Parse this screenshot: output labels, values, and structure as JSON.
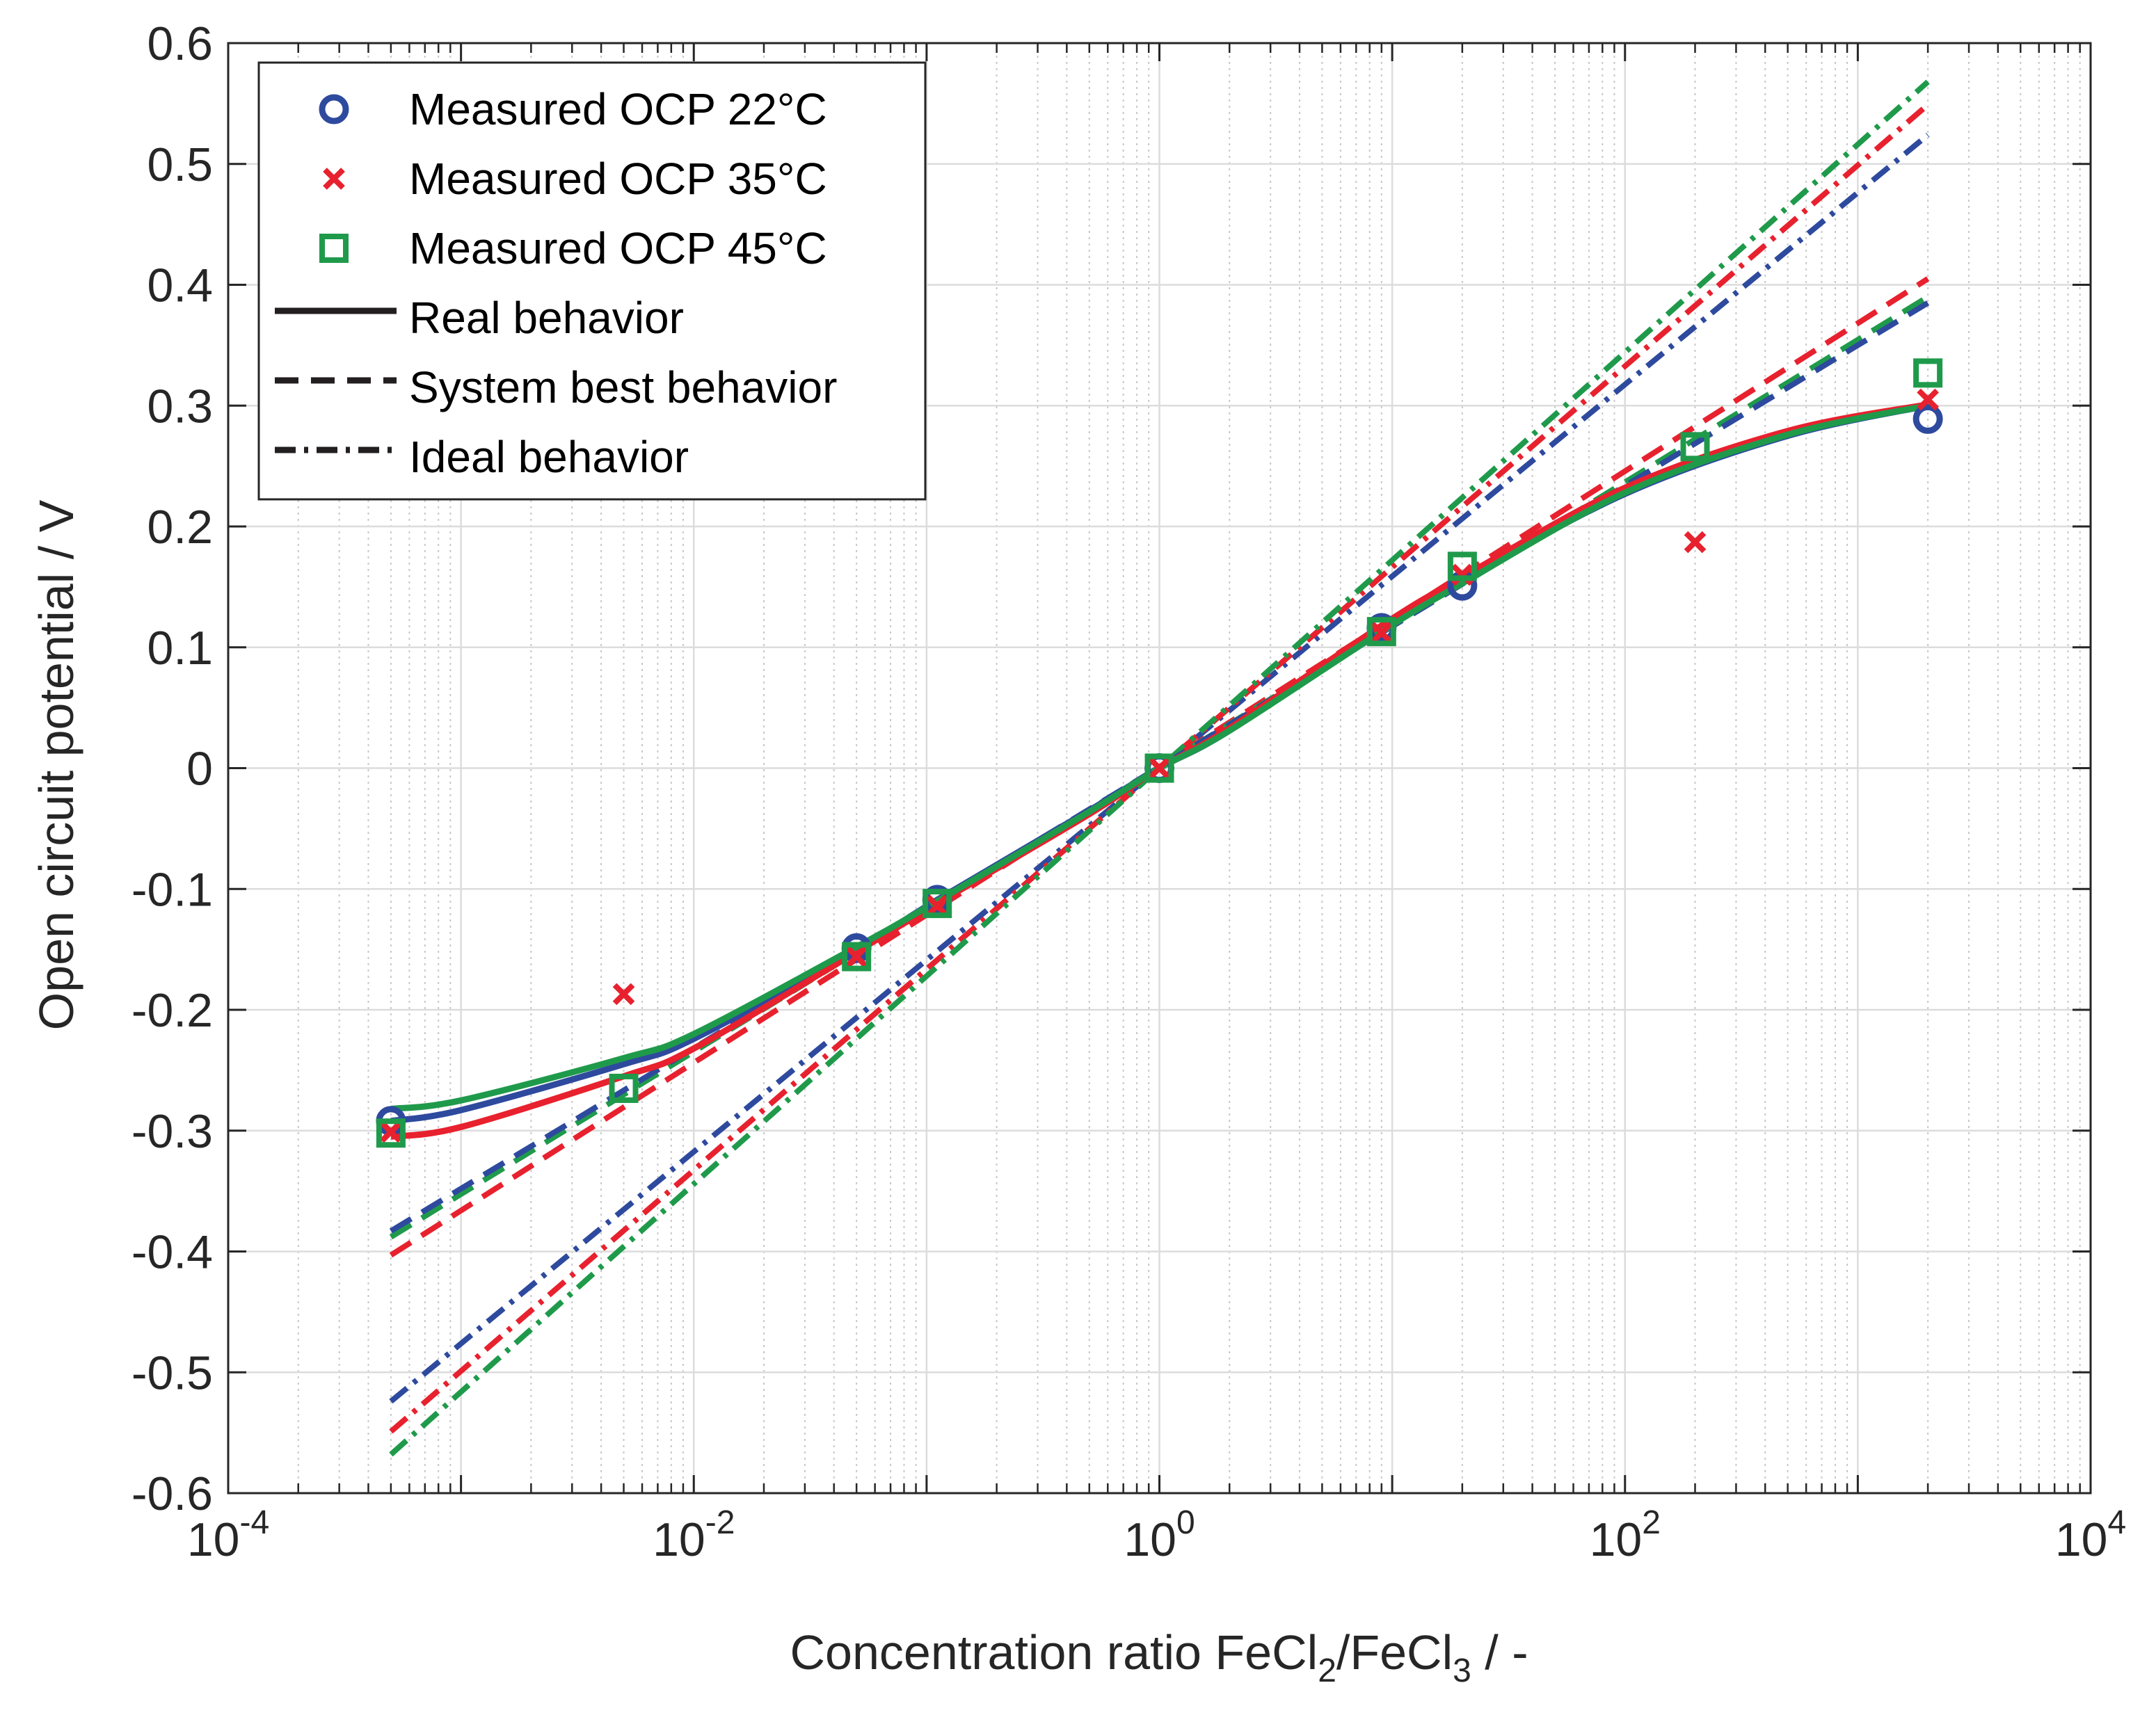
{
  "chart_data": {
    "type": "scatter",
    "title": "",
    "xlabel": {
      "prefix": "Concentration ratio FeCl",
      "sub1": "2",
      "mid": "/FeCl",
      "sub2": "3",
      "suffix": " / -"
    },
    "ylabel": "Open circuit potential / V",
    "xscale": "log",
    "xlim": [
      0.0001,
      10000
    ],
    "ylim": [
      -0.6,
      0.6
    ],
    "xticks": [
      {
        "base": "10",
        "exp": "-4",
        "value": 0.0001
      },
      {
        "base": "10",
        "exp": "-2",
        "value": 0.01
      },
      {
        "base": "10",
        "exp": "0",
        "value": 1
      },
      {
        "base": "10",
        "exp": "2",
        "value": 100
      },
      {
        "base": "10",
        "exp": "4",
        "value": 10000
      }
    ],
    "yticks": [
      "-0.6",
      "-0.5",
      "-0.4",
      "-0.3",
      "-0.2",
      "-0.1",
      "0",
      "0.1",
      "0.2",
      "0.3",
      "0.4",
      "0.5",
      "0.6"
    ],
    "grid": true,
    "legend_position": "top-left",
    "legend": [
      {
        "label": "Measured OCP 22°C",
        "marker": "circle",
        "color": "#2e4a9e"
      },
      {
        "label": "Measured OCP 35°C",
        "marker": "x",
        "color": "#e8212e"
      },
      {
        "label": "Measured OCP 45°C",
        "marker": "square",
        "color": "#1f9a4b"
      },
      {
        "label": "Real behavior",
        "linestyle": "solid",
        "color": "#231f20"
      },
      {
        "label": "System best behavior",
        "linestyle": "dashed",
        "color": "#231f20"
      },
      {
        "label": "Ideal behavior",
        "linestyle": "dashdot",
        "color": "#231f20"
      }
    ],
    "measured": [
      {
        "temperature": "22°C",
        "color": "#2e4a9e",
        "marker": "circle",
        "points": [
          [
            0.0005,
            -0.292
          ],
          [
            0.05,
            -0.149
          ],
          [
            0.1111,
            -0.109
          ],
          [
            1,
            0.0
          ],
          [
            9,
            0.116
          ],
          [
            20,
            0.151
          ],
          [
            2000,
            0.289
          ]
        ]
      },
      {
        "temperature": "35°C",
        "color": "#e8212e",
        "marker": "x",
        "points": [
          [
            0.0005,
            -0.301
          ],
          [
            0.005,
            -0.187
          ],
          [
            0.05,
            -0.156
          ],
          [
            0.1111,
            -0.114
          ],
          [
            1,
            0.0
          ],
          [
            9,
            0.112
          ],
          [
            20,
            0.16
          ],
          [
            200,
            0.187
          ],
          [
            2000,
            0.305
          ]
        ]
      },
      {
        "temperature": "45°C",
        "color": "#1f9a4b",
        "marker": "square",
        "points": [
          [
            0.0005,
            -0.302
          ],
          [
            0.005,
            -0.265
          ],
          [
            0.05,
            -0.156
          ],
          [
            0.1111,
            -0.112
          ],
          [
            1,
            0.0
          ],
          [
            9,
            0.113
          ],
          [
            20,
            0.167
          ],
          [
            200,
            0.266
          ],
          [
            2000,
            0.327
          ]
        ]
      }
    ],
    "real": [
      {
        "color": "#2e4a9e",
        "points": [
          [
            0.0005,
            -0.292
          ],
          [
            0.001,
            -0.283
          ],
          [
            0.005,
            -0.245
          ],
          [
            0.01,
            -0.224
          ],
          [
            0.05,
            -0.15
          ],
          [
            0.1111,
            -0.109
          ],
          [
            0.5,
            -0.035
          ],
          [
            1,
            0.0
          ],
          [
            2,
            0.031
          ],
          [
            9,
            0.115
          ],
          [
            20,
            0.155
          ],
          [
            100,
            0.227
          ],
          [
            500,
            0.275
          ],
          [
            2000,
            0.3
          ]
        ]
      },
      {
        "color": "#e8212e",
        "points": [
          [
            0.0005,
            -0.305
          ],
          [
            0.001,
            -0.297
          ],
          [
            0.005,
            -0.255
          ],
          [
            0.01,
            -0.232
          ],
          [
            0.05,
            -0.152
          ],
          [
            0.1111,
            -0.112
          ],
          [
            0.5,
            -0.038
          ],
          [
            1,
            0.0
          ],
          [
            2,
            0.033
          ],
          [
            9,
            0.118
          ],
          [
            20,
            0.158
          ],
          [
            100,
            0.232
          ],
          [
            500,
            0.279
          ],
          [
            2000,
            0.301
          ]
        ]
      },
      {
        "color": "#1f9a4b",
        "points": [
          [
            0.0005,
            -0.282
          ],
          [
            0.001,
            -0.275
          ],
          [
            0.005,
            -0.24
          ],
          [
            0.01,
            -0.22
          ],
          [
            0.05,
            -0.148
          ],
          [
            0.1111,
            -0.11
          ],
          [
            0.5,
            -0.036
          ],
          [
            1,
            0.0
          ],
          [
            2,
            0.031
          ],
          [
            9,
            0.113
          ],
          [
            20,
            0.153
          ],
          [
            100,
            0.228
          ],
          [
            500,
            0.276
          ],
          [
            2000,
            0.3
          ]
        ]
      }
    ],
    "system_best": [
      {
        "color": "#e8212e",
        "points": [
          [
            0.0005,
            -0.403
          ],
          [
            2000,
            0.405
          ]
        ]
      },
      {
        "color": "#1f9a4b",
        "points": [
          [
            0.0005,
            -0.388
          ],
          [
            2000,
            0.39
          ]
        ]
      },
      {
        "color": "#2e4a9e",
        "points": [
          [
            0.0005,
            -0.383
          ],
          [
            2000,
            0.385
          ]
        ]
      }
    ],
    "ideal": [
      {
        "color": "#2e4a9e",
        "points": [
          [
            0.0005,
            -0.524
          ],
          [
            2000,
            0.524
          ]
        ]
      },
      {
        "color": "#e8212e",
        "points": [
          [
            0.0005,
            -0.549
          ],
          [
            2000,
            0.549
          ]
        ]
      },
      {
        "color": "#1f9a4b",
        "points": [
          [
            0.0005,
            -0.568
          ],
          [
            2000,
            0.568
          ]
        ]
      }
    ]
  }
}
